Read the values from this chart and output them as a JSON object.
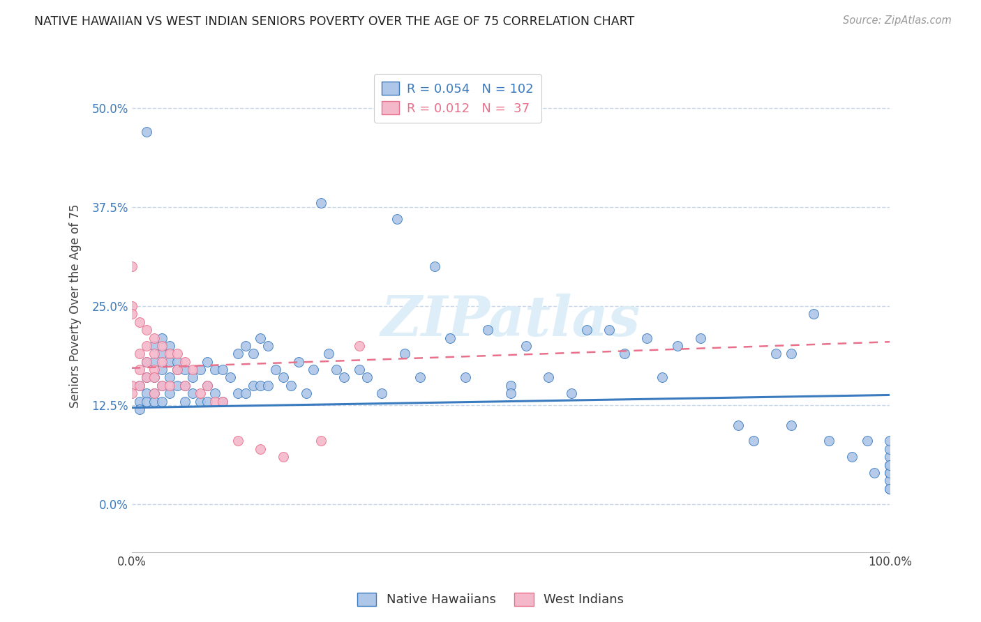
{
  "title": "NATIVE HAWAIIAN VS WEST INDIAN SENIORS POVERTY OVER THE AGE OF 75 CORRELATION CHART",
  "source": "Source: ZipAtlas.com",
  "ylabel": "Seniors Poverty Over the Age of 75",
  "r_nh": 0.054,
  "n_nh": 102,
  "r_wi": 0.012,
  "n_wi": 37,
  "xlim": [
    0.0,
    1.0
  ],
  "ylim": [
    -0.06,
    0.56
  ],
  "yticks": [
    0.0,
    0.125,
    0.25,
    0.375,
    0.5
  ],
  "ytick_labels": [
    "0.0%",
    "12.5%",
    "25.0%",
    "37.5%",
    "50.0%"
  ],
  "xtick_labels": [
    "0.0%",
    "",
    "",
    "",
    "",
    "",
    "",
    "",
    "",
    "",
    "100.0%"
  ],
  "color_nh": "#aec6e8",
  "color_wi": "#f4b8cb",
  "line_color_nh": "#3a7abf",
  "line_color_wi": "#e8708a",
  "background_color": "#ffffff",
  "grid_color": "#c8d8ea",
  "watermark_text": "ZIPatlas",
  "watermark_color": "#ddeef8",
  "nh_trend_x": [
    0.0,
    1.0
  ],
  "nh_trend_y": [
    0.122,
    0.138
  ],
  "wi_trend_x": [
    0.0,
    1.0
  ],
  "wi_trend_y": [
    0.172,
    0.205
  ],
  "nh_x": [
    0.02,
    0.01,
    0.01,
    0.01,
    0.02,
    0.02,
    0.02,
    0.02,
    0.03,
    0.03,
    0.03,
    0.03,
    0.03,
    0.04,
    0.04,
    0.04,
    0.04,
    0.04,
    0.05,
    0.05,
    0.05,
    0.05,
    0.06,
    0.06,
    0.06,
    0.07,
    0.07,
    0.07,
    0.08,
    0.08,
    0.09,
    0.09,
    0.1,
    0.1,
    0.1,
    0.11,
    0.11,
    0.12,
    0.12,
    0.13,
    0.14,
    0.14,
    0.15,
    0.15,
    0.16,
    0.16,
    0.17,
    0.17,
    0.18,
    0.18,
    0.19,
    0.2,
    0.21,
    0.22,
    0.23,
    0.24,
    0.25,
    0.26,
    0.27,
    0.28,
    0.3,
    0.31,
    0.33,
    0.35,
    0.36,
    0.38,
    0.4,
    0.42,
    0.44,
    0.47,
    0.5,
    0.5,
    0.52,
    0.55,
    0.58,
    0.6,
    0.63,
    0.65,
    0.68,
    0.7,
    0.72,
    0.75,
    0.8,
    0.82,
    0.85,
    0.87,
    0.87,
    0.9,
    0.92,
    0.95,
    0.97,
    0.98,
    1.0,
    1.0,
    1.0,
    1.0,
    1.0,
    1.0,
    1.0,
    1.0,
    1.0,
    1.0
  ],
  "nh_y": [
    0.47,
    0.15,
    0.13,
    0.12,
    0.18,
    0.16,
    0.14,
    0.13,
    0.2,
    0.18,
    0.16,
    0.14,
    0.13,
    0.21,
    0.19,
    0.17,
    0.15,
    0.13,
    0.2,
    0.18,
    0.16,
    0.14,
    0.18,
    0.17,
    0.15,
    0.17,
    0.15,
    0.13,
    0.16,
    0.14,
    0.17,
    0.13,
    0.18,
    0.15,
    0.13,
    0.17,
    0.14,
    0.17,
    0.13,
    0.16,
    0.19,
    0.14,
    0.2,
    0.14,
    0.19,
    0.15,
    0.21,
    0.15,
    0.2,
    0.15,
    0.17,
    0.16,
    0.15,
    0.18,
    0.14,
    0.17,
    0.38,
    0.19,
    0.17,
    0.16,
    0.17,
    0.16,
    0.14,
    0.36,
    0.19,
    0.16,
    0.3,
    0.21,
    0.16,
    0.22,
    0.15,
    0.14,
    0.2,
    0.16,
    0.14,
    0.22,
    0.22,
    0.19,
    0.21,
    0.16,
    0.2,
    0.21,
    0.1,
    0.08,
    0.19,
    0.19,
    0.1,
    0.24,
    0.08,
    0.06,
    0.08,
    0.04,
    0.04,
    0.05,
    0.06,
    0.07,
    0.08,
    0.03,
    0.04,
    0.05,
    0.02,
    0.02
  ],
  "wi_x": [
    0.0,
    0.0,
    0.0,
    0.0,
    0.0,
    0.01,
    0.01,
    0.01,
    0.01,
    0.02,
    0.02,
    0.02,
    0.02,
    0.03,
    0.03,
    0.03,
    0.03,
    0.03,
    0.04,
    0.04,
    0.04,
    0.05,
    0.05,
    0.06,
    0.06,
    0.07,
    0.07,
    0.08,
    0.09,
    0.1,
    0.11,
    0.12,
    0.14,
    0.17,
    0.2,
    0.25,
    0.3
  ],
  "wi_y": [
    0.3,
    0.25,
    0.24,
    0.15,
    0.14,
    0.23,
    0.19,
    0.17,
    0.15,
    0.22,
    0.2,
    0.18,
    0.16,
    0.21,
    0.19,
    0.17,
    0.16,
    0.14,
    0.2,
    0.18,
    0.15,
    0.19,
    0.15,
    0.19,
    0.17,
    0.18,
    0.15,
    0.17,
    0.14,
    0.15,
    0.13,
    0.13,
    0.08,
    0.07,
    0.06,
    0.08,
    0.2
  ]
}
